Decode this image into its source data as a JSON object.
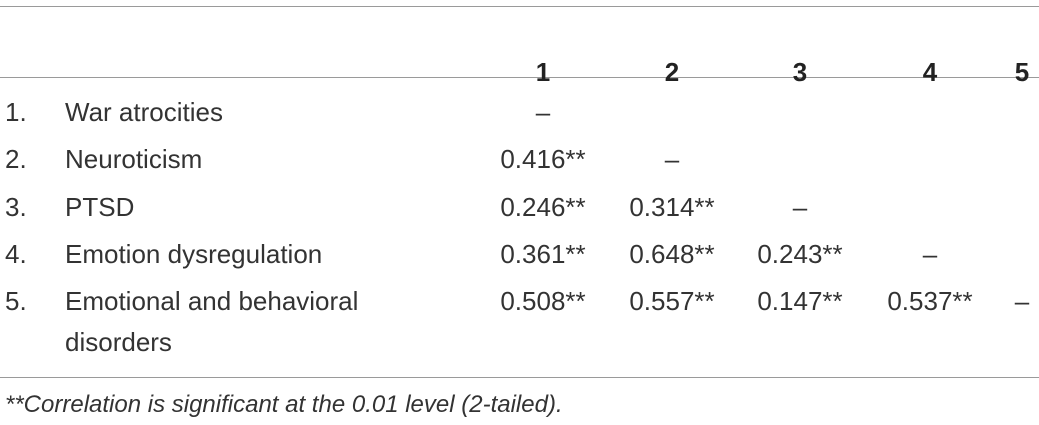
{
  "table": {
    "columns": [
      "1",
      "2",
      "3",
      "4",
      "5"
    ],
    "rows": [
      {
        "number": "1.",
        "label": "War atrocities",
        "cells": [
          "–"
        ]
      },
      {
        "number": "2.",
        "label": "Neuroticism",
        "cells": [
          "0.416**",
          "–"
        ]
      },
      {
        "number": "3.",
        "label": "PTSD",
        "cells": [
          "0.246**",
          "0.314**",
          "–"
        ]
      },
      {
        "number": "4.",
        "label": "Emotion dysregulation",
        "cells": [
          "0.361**",
          "0.648**",
          "0.243**",
          "–"
        ]
      },
      {
        "number": "5.",
        "label": "Emotional and behavioral disorders",
        "cells": [
          "0.508**",
          "0.557**",
          "0.147**",
          "0.537**",
          "–"
        ]
      }
    ]
  },
  "footnote": "**Correlation is significant at the 0.01 level (2-tailed)."
}
